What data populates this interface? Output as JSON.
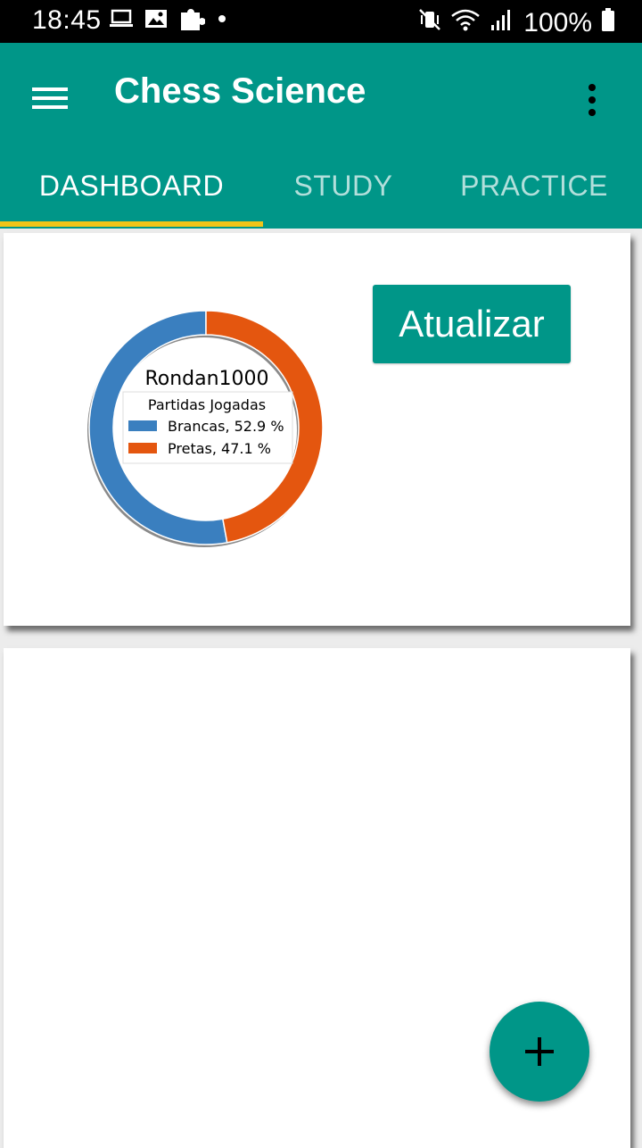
{
  "status_bar": {
    "time": "18:45",
    "battery": "100%",
    "icons": [
      "laptop-icon",
      "image-icon",
      "puzzle-icon",
      "notification-dot-icon",
      "mute-vibrate-icon",
      "wifi-icon",
      "signal-icon",
      "battery-icon"
    ]
  },
  "app_bar": {
    "title": "Chess Science",
    "menu_icon": "hamburger-menu-icon",
    "more_icon": "more-vert-icon",
    "tabs": [
      {
        "label": "DASHBOARD",
        "active": true
      },
      {
        "label": "STUDY",
        "active": false
      },
      {
        "label": "PRACTICE",
        "active": false
      }
    ],
    "colors": {
      "primary": "#009688",
      "indicator": "#f0c419",
      "inactive_tab": "#b2dfdb"
    }
  },
  "card1": {
    "button_label": "Atualizar"
  },
  "chart_data": {
    "type": "pie",
    "title": "Rondan1000",
    "legend_title": "Partidas Jogadas",
    "legend_placement": "center",
    "slices": [
      {
        "label": "Brancas, 52.9 %",
        "name": "Brancas",
        "value": 52.9,
        "color": "#3a7fbf"
      },
      {
        "label": "Pretas, 47.1 %",
        "name": "Pretas",
        "value": 47.1,
        "color": "#e4560f"
      }
    ]
  },
  "fab": {
    "icon": "plus-icon"
  }
}
